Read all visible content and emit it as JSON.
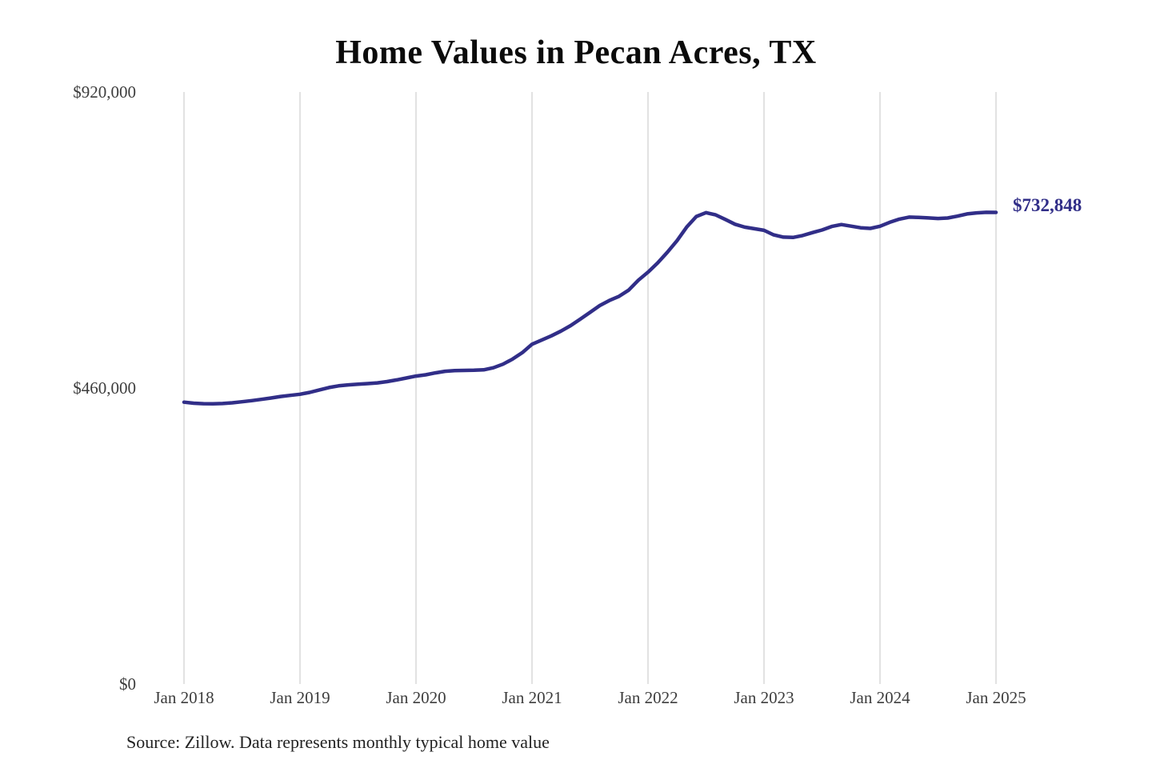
{
  "title": "Home Values in Pecan Acres, TX",
  "source_note": "Source: Zillow. Data represents monthly typical home value",
  "colors": {
    "line": "#312e88",
    "end_label": "#312e88",
    "grid": "#c6c6c6",
    "axis_label": "#3d3d3d",
    "title": "#0b0b0b",
    "source": "#222222",
    "background": "#ffffff"
  },
  "chart_data": {
    "type": "line",
    "title": "Home Values in Pecan Acres, TX",
    "x_start": "Jan 2018",
    "x_end": "Jan 2025",
    "x_interval": "month",
    "x_tick_labels": [
      "Jan 2018",
      "Jan 2019",
      "Jan 2020",
      "Jan 2021",
      "Jan 2022",
      "Jan 2023",
      "Jan 2024",
      "Jan 2025"
    ],
    "y_ticks": [
      {
        "value": 0,
        "label": "$0"
      },
      {
        "value": 460000,
        "label": "$460,000"
      },
      {
        "value": 920000,
        "label": "$920,000"
      }
    ],
    "ylim": [
      0,
      920000
    ],
    "grid": "vertical-only",
    "legend": "none",
    "end_label": "$732,848",
    "final_value": 732848,
    "series": [
      {
        "name": "Monthly typical home value",
        "values": [
          438000,
          436400,
          435600,
          435400,
          435900,
          437000,
          438600,
          440400,
          442400,
          444500,
          446800,
          448600,
          450300,
          453200,
          457000,
          460800,
          463400,
          464900,
          465900,
          466800,
          468000,
          470000,
          472500,
          475500,
          478500,
          480500,
          483500,
          486000,
          487000,
          487400,
          487600,
          488200,
          491500,
          497000,
          505000,
          515000,
          528000,
          534500,
          541000,
          548500,
          557000,
          567000,
          577500,
          588000,
          596000,
          602500,
          612000,
          627500,
          640000,
          654500,
          671000,
          689000,
          710000,
          726500,
          732500,
          729000,
          722000,
          714500,
          710000,
          707500,
          705000,
          698000,
          694500,
          694000,
          697000,
          701500,
          705500,
          711000,
          714000,
          711500,
          709000,
          708000,
          711400,
          717500,
          722500,
          725500,
          725000,
          724300,
          723500,
          724200,
          727000,
          730500,
          732200,
          733000,
          732848
        ]
      }
    ]
  }
}
